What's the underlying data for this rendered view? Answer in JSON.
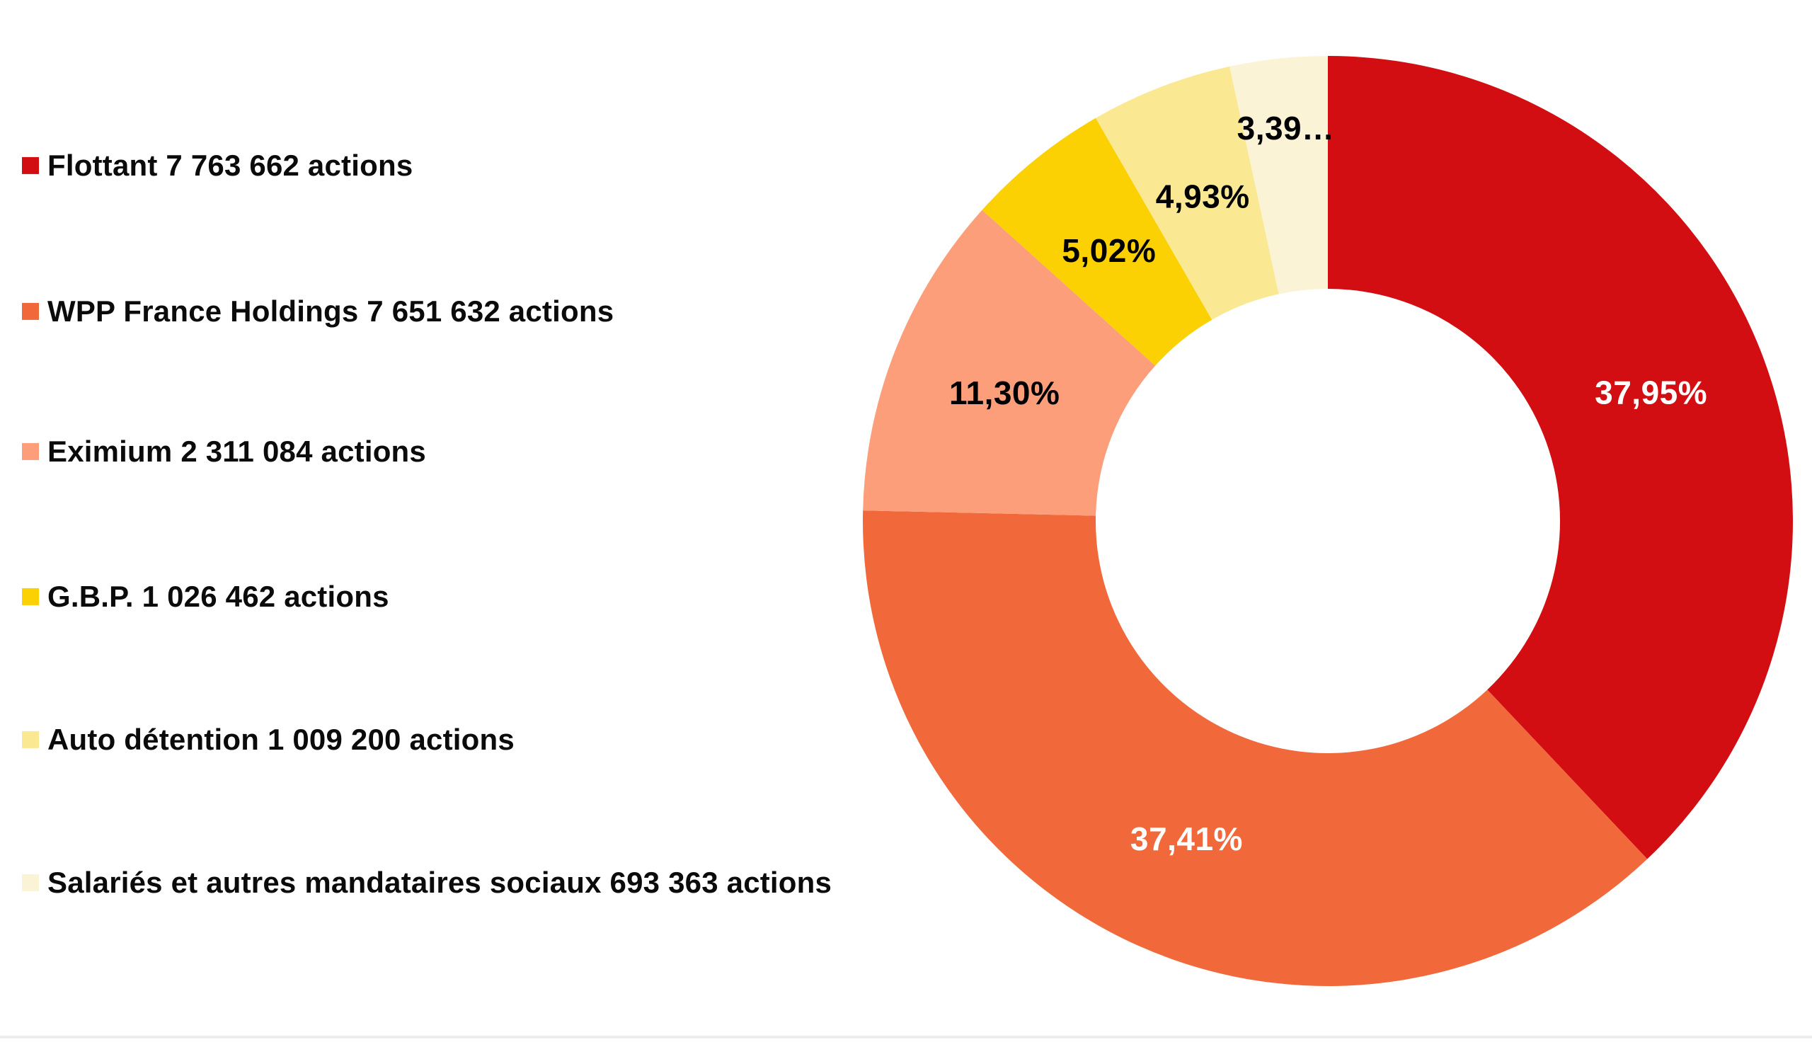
{
  "chart_data": {
    "type": "pie",
    "subtype": "donut",
    "title": "",
    "unit": "actions",
    "direction": "clockwise",
    "start_angle_deg": 0,
    "hole_ratio": 0.499,
    "legend_position": "left",
    "background_color": "#ffffff",
    "slices": [
      {
        "id": "flottant",
        "name": "Flottant",
        "shares": 7763662,
        "legend_label": "Flottant 7 763 662 actions",
        "pct": 37.95,
        "pct_label": "37,95%",
        "color": "#d30e12",
        "pct_label_color": "#ffffff"
      },
      {
        "id": "wpp-france-holdings",
        "name": "WPP France Holdings",
        "shares": 7651632,
        "legend_label": "WPP France Holdings 7 651 632 actions",
        "pct": 37.41,
        "pct_label": "37,41%",
        "color": "#f1693b",
        "pct_label_color": "#ffffff"
      },
      {
        "id": "eximium",
        "name": "Eximium",
        "shares": 2311084,
        "legend_label": "Eximium 2 311 084 actions",
        "pct": 11.3,
        "pct_label": "11,30%",
        "color": "#fb9e79",
        "pct_label_color": "#000000"
      },
      {
        "id": "gbp",
        "name": "G.B.P.",
        "shares": 1026462,
        "legend_label": "G.B.P. 1 026 462 actions",
        "pct": 5.02,
        "pct_label": "5,02%",
        "color": "#fbd103",
        "pct_label_color": "#000000"
      },
      {
        "id": "auto-detention",
        "name": "Auto détention",
        "shares": 1009200,
        "legend_label": "Auto détention 1 009 200 actions",
        "pct": 4.93,
        "pct_label": "4,93%",
        "color": "#fbe893",
        "pct_label_color": "#000000"
      },
      {
        "id": "salaries-et-autres-mandataires-sociaux",
        "name": "Salariés et autres mandataires sociaux",
        "shares": 693363,
        "legend_label": "Salariés et autres mandataires sociaux 693 363 actions",
        "pct": 3.39,
        "pct_label": "3,39…",
        "color": "#faf3d6",
        "pct_label_color": "#000000"
      }
    ]
  }
}
